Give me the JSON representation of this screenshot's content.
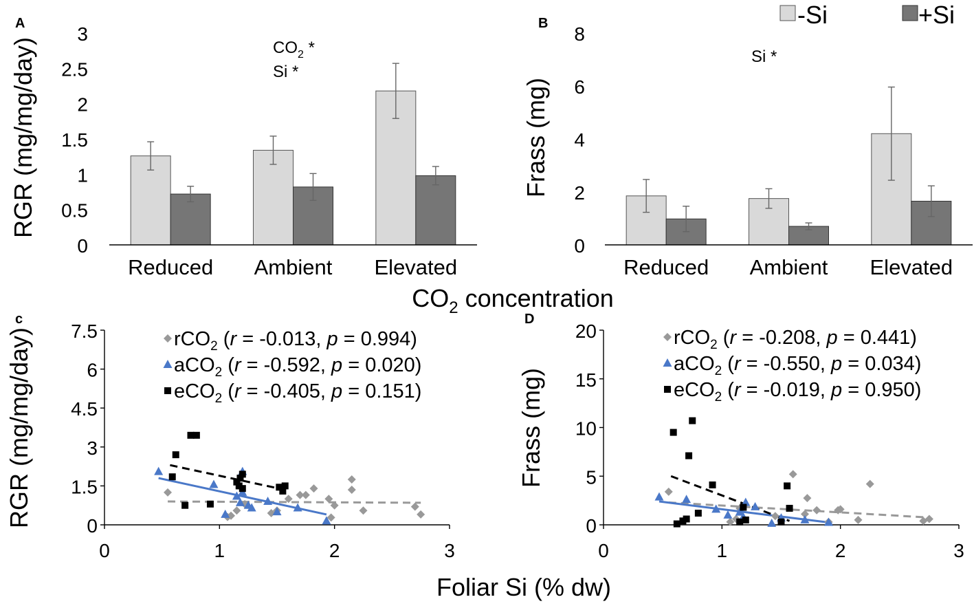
{
  "colors": {
    "minus_si": "#d9d9d9",
    "plus_si": "#767676",
    "rco2": "#999999",
    "aco2": "#4a78c8",
    "eco2": "#000000"
  },
  "legend": {
    "minus_si": "-Si",
    "plus_si": "+Si"
  },
  "shared": {
    "co2_xlabel_main": "CO",
    "co2_xlabel_sub": "2",
    "co2_xlabel_rest": " concentration",
    "foliar_xlabel": "Foliar Si (% dw)"
  },
  "chart_data": [
    {
      "panel": "A",
      "type": "bar",
      "categories": [
        "Reduced",
        "Ambient",
        "Elevated"
      ],
      "series": [
        {
          "name": "-Si",
          "values": [
            1.26,
            1.34,
            2.18
          ],
          "errors": [
            0.2,
            0.2,
            0.39
          ]
        },
        {
          "name": "+Si",
          "values": [
            0.72,
            0.82,
            0.98
          ],
          "errors": [
            0.11,
            0.19,
            0.13
          ]
        }
      ],
      "ylabel": "RGR (mg/mg/day)",
      "ylim": [
        0,
        3
      ],
      "yticks": [
        "0",
        "0.5",
        "1",
        "1.5",
        "2",
        "2.5",
        "3"
      ],
      "ytick_values": [
        0,
        0.5,
        1,
        1.5,
        2,
        2.5,
        3
      ],
      "annotation_co2_main": "CO",
      "annotation_co2_sub": "2",
      "annotation_co2_star": " *",
      "annotation_si": "Si *"
    },
    {
      "panel": "B",
      "type": "bar",
      "categories": [
        "Reduced",
        "Ambient",
        "Elevated"
      ],
      "series": [
        {
          "name": "-Si",
          "values": [
            1.85,
            1.75,
            4.2
          ],
          "errors": [
            0.62,
            0.37,
            1.76
          ]
        },
        {
          "name": "+Si",
          "values": [
            0.98,
            0.7,
            1.65
          ],
          "errors": [
            0.48,
            0.13,
            0.58
          ]
        }
      ],
      "ylabel": "Frass (mg)",
      "ylim": [
        0,
        8
      ],
      "yticks": [
        "0",
        "2",
        "4",
        "6",
        "8"
      ],
      "ytick_values": [
        0,
        2,
        4,
        6,
        8
      ],
      "annotation_si": "Si *"
    },
    {
      "panel": "c",
      "type": "scatter",
      "ylabel": "RGR (mg/mg/day)",
      "xlabel": "Foliar Si (% dw)",
      "xlim": [
        0,
        3
      ],
      "ylim": [
        0,
        7.5
      ],
      "xticks": [
        "0",
        "1",
        "2",
        "3"
      ],
      "xtick_values": [
        0,
        1,
        2,
        3
      ],
      "yticks": [
        "0",
        "1.5",
        "3",
        "4.5",
        "6",
        "7.5"
      ],
      "ytick_values": [
        0,
        1.5,
        3,
        4.5,
        6,
        7.5
      ],
      "series": [
        {
          "name": "rCO2",
          "marker": "diamond",
          "color": "#999999",
          "label_pre": "rCO",
          "label_sub": "2",
          "label_open": " (",
          "r_label": "r",
          "r_text": " = -0.013, ",
          "p_label": "p",
          "p_text": " = 0.994)",
          "points": [
            [
              0.55,
              1.25
            ],
            [
              1.07,
              0.3
            ],
            [
              1.1,
              0.35
            ],
            [
              1.15,
              0.55
            ],
            [
              1.22,
              0.8
            ],
            [
              1.45,
              0.45
            ],
            [
              1.5,
              0.55
            ],
            [
              1.6,
              1.0
            ],
            [
              1.7,
              1.15
            ],
            [
              1.75,
              1.15
            ],
            [
              1.82,
              1.4
            ],
            [
              1.95,
              1.0
            ],
            [
              1.97,
              0.28
            ],
            [
              2.0,
              0.75
            ],
            [
              2.15,
              1.75
            ],
            [
              2.15,
              1.35
            ],
            [
              2.25,
              0.55
            ],
            [
              2.7,
              0.7
            ],
            [
              2.75,
              0.4
            ]
          ],
          "trend": [
            [
              0.55,
              0.9
            ],
            [
              2.75,
              0.85
            ]
          ]
        },
        {
          "name": "aCO2",
          "marker": "triangle",
          "color": "#4a78c8",
          "label_pre": "aCO",
          "label_sub": "2",
          "label_open": " (",
          "r_label": "r",
          "r_text": " = -0.592, ",
          "p_label": "p",
          "p_text": " = 0.020)",
          "points": [
            [
              0.47,
              2.05
            ],
            [
              0.95,
              1.55
            ],
            [
              1.05,
              0.4
            ],
            [
              1.15,
              1.1
            ],
            [
              1.18,
              0.85
            ],
            [
              1.2,
              1.25
            ],
            [
              1.2,
              2.05
            ],
            [
              1.25,
              0.75
            ],
            [
              1.28,
              0.65
            ],
            [
              1.42,
              0.9
            ],
            [
              1.5,
              0.5
            ],
            [
              1.68,
              0.65
            ],
            [
              1.93,
              0.15
            ]
          ],
          "trend": [
            [
              0.47,
              1.8
            ],
            [
              1.93,
              0.4
            ]
          ]
        },
        {
          "name": "eCO2",
          "marker": "square",
          "color": "#000000",
          "label_pre": "eCO",
          "label_sub": "2",
          "label_open": " (",
          "r_label": "r",
          "r_text": " = -0.405, ",
          "p_label": "p",
          "p_text": " = 0.151)",
          "points": [
            [
              0.59,
              1.85
            ],
            [
              0.62,
              2.7
            ],
            [
              0.7,
              0.75
            ],
            [
              0.75,
              3.45
            ],
            [
              0.8,
              3.45
            ],
            [
              0.92,
              0.8
            ],
            [
              1.15,
              1.65
            ],
            [
              1.17,
              1.5
            ],
            [
              1.18,
              1.8
            ],
            [
              1.2,
              1.95
            ],
            [
              1.2,
              1.4
            ],
            [
              1.52,
              1.45
            ],
            [
              1.55,
              1.3
            ],
            [
              1.57,
              1.5
            ]
          ],
          "trend": [
            [
              0.57,
              2.3
            ],
            [
              1.57,
              1.35
            ]
          ]
        }
      ]
    },
    {
      "panel": "D",
      "type": "scatter",
      "ylabel": "Frass (mg)",
      "xlabel": "Foliar Si (% dw)",
      "xlim": [
        0,
        3
      ],
      "ylim": [
        0,
        20
      ],
      "xticks": [
        "0",
        "1",
        "2",
        "3"
      ],
      "xtick_values": [
        0,
        1,
        2,
        3
      ],
      "yticks": [
        "0",
        "5",
        "10",
        "15",
        "20"
      ],
      "ytick_values": [
        0,
        5,
        10,
        15,
        20
      ],
      "series": [
        {
          "name": "rCO2",
          "marker": "diamond",
          "color": "#999999",
          "label_pre": "rCO",
          "label_sub": "2",
          "label_open": " (",
          "r_label": "r",
          "r_text": " = -0.208, ",
          "p_label": "p",
          "p_text": " = 0.441)",
          "points": [
            [
              0.55,
              3.4
            ],
            [
              1.07,
              0.3
            ],
            [
              1.12,
              0.6
            ],
            [
              1.15,
              1.7
            ],
            [
              1.45,
              0.9
            ],
            [
              1.6,
              5.2
            ],
            [
              1.72,
              2.75
            ],
            [
              1.7,
              1.1
            ],
            [
              1.8,
              1.5
            ],
            [
              1.98,
              1.5
            ],
            [
              1.9,
              0.3
            ],
            [
              2.0,
              1.6
            ],
            [
              2.15,
              0.5
            ],
            [
              2.25,
              4.2
            ],
            [
              2.7,
              0.4
            ],
            [
              2.75,
              0.6
            ]
          ],
          "trend": [
            [
              0.55,
              2.3
            ],
            [
              2.75,
              0.75
            ]
          ]
        },
        {
          "name": "aCO2",
          "marker": "triangle",
          "color": "#4a78c8",
          "label_pre": "aCO",
          "label_sub": "2",
          "label_open": " (",
          "r_label": "r",
          "r_text": " = -0.550, ",
          "p_label": "p",
          "p_text": " = 0.034)",
          "points": [
            [
              0.47,
              2.85
            ],
            [
              0.7,
              2.6
            ],
            [
              0.95,
              1.6
            ],
            [
              1.05,
              1.0
            ],
            [
              1.15,
              1.3
            ],
            [
              1.18,
              0.8
            ],
            [
              1.2,
              2.3
            ],
            [
              1.28,
              1.85
            ],
            [
              1.42,
              0.15
            ],
            [
              1.5,
              0.7
            ],
            [
              1.7,
              0.5
            ],
            [
              1.9,
              0.25
            ]
          ],
          "trend": [
            [
              0.47,
              2.4
            ],
            [
              1.93,
              0.2
            ]
          ]
        },
        {
          "name": "eCO2",
          "marker": "square",
          "color": "#000000",
          "label_pre": "eCO",
          "label_sub": "2",
          "label_open": " (",
          "r_label": "r",
          "r_text": " = -0.019, ",
          "p_label": "p",
          "p_text": " = 0.950)",
          "points": [
            [
              0.59,
              9.5
            ],
            [
              0.62,
              0.1
            ],
            [
              0.67,
              0.4
            ],
            [
              0.7,
              0.6
            ],
            [
              0.72,
              7.1
            ],
            [
              0.75,
              10.7
            ],
            [
              0.8,
              1.2
            ],
            [
              0.92,
              4.1
            ],
            [
              1.15,
              0.3
            ],
            [
              1.18,
              1.8
            ],
            [
              1.2,
              0.5
            ],
            [
              1.5,
              0.3
            ],
            [
              1.55,
              4.0
            ],
            [
              1.57,
              1.7
            ]
          ],
          "trend": [
            [
              0.57,
              5.0
            ],
            [
              1.57,
              0.4
            ]
          ]
        }
      ]
    }
  ]
}
